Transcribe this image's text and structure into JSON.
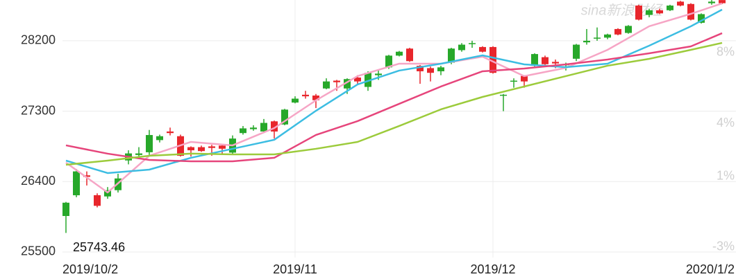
{
  "chart_data": {
    "type": "candlestick",
    "watermark": "sina新浪财经",
    "annotation": "25743.46",
    "categories": [
      "2019/10/2",
      null,
      null,
      null,
      null,
      null,
      null,
      null,
      null,
      null,
      null,
      null,
      null,
      null,
      null,
      null,
      null,
      null,
      null,
      null,
      null,
      null,
      "2019/11",
      null,
      null,
      null,
      null,
      null,
      null,
      null,
      null,
      null,
      null,
      null,
      null,
      null,
      null,
      null,
      null,
      null,
      null,
      "2019/12",
      null,
      null,
      null,
      null,
      null,
      null,
      null,
      null,
      null,
      null,
      null,
      null,
      null,
      null,
      null,
      null,
      null,
      null,
      null,
      null,
      null,
      "2020/1/2"
    ],
    "open": [
      26130,
      26530,
      26460,
      26090,
      26290,
      26440,
      26760,
      26760,
      26995,
      26980,
      27020,
      26730,
      26800,
      26790,
      26830,
      26820,
      26950,
      27080,
      27090,
      27150,
      27040,
      27320,
      27460,
      27490,
      27440,
      27680,
      27670,
      27710,
      27680,
      27790,
      27780,
      28010,
      28060,
      27940,
      27810,
      27790,
      27860,
      28100,
      28150,
      28170,
      28060,
      27790,
      27510,
      27690,
      27680,
      28030,
      27900,
      27910,
      27900,
      28150,
      28200,
      28240,
      28280,
      28280,
      28390,
      28470,
      28590,
      28550,
      28650,
      28650,
      28470,
      28540,
      28700,
      28680
    ],
    "high": [
      26140,
      26560,
      26530,
      26250,
      26330,
      26500,
      26800,
      26840,
      27060,
      27000,
      27090,
      27000,
      26850,
      26860,
      26870,
      26880,
      26990,
      27110,
      27120,
      27200,
      27180,
      27330,
      27490,
      27560,
      27520,
      27720,
      27700,
      27720,
      27760,
      27810,
      27820,
      28020,
      28070,
      28110,
      27890,
      27870,
      27880,
      28110,
      28170,
      28200,
      28130,
      28130,
      27520,
      27720,
      27760,
      28040,
      28010,
      27960,
      27920,
      28160,
      28350,
      28370,
      28290,
      28360,
      28400,
      28660,
      28610,
      28610,
      28660,
      28710,
      28680,
      28550,
      28720,
      28720
    ],
    "low": [
      25743.46,
      26200,
      26350,
      26070,
      26180,
      26260,
      26620,
      26700,
      26740,
      26900,
      26990,
      26720,
      26720,
      26780,
      26730,
      26740,
      26750,
      27000,
      27050,
      27020,
      26950,
      27120,
      27400,
      27460,
      27340,
      27580,
      27560,
      27520,
      27640,
      27560,
      27700,
      27840,
      28000,
      27930,
      27650,
      27680,
      27760,
      27900,
      28060,
      28110,
      28050,
      27780,
      27300,
      27600,
      27600,
      27870,
      27890,
      27850,
      27820,
      27940,
      28150,
      28200,
      28220,
      28270,
      28290,
      28460,
      28500,
      28540,
      28580,
      28640,
      28460,
      28420,
      28660,
      28670
    ],
    "close": [
      25960,
      26225,
      26480,
      26226,
      26210,
      26290,
      26670,
      26740,
      26775,
      26930,
      27040,
      26980,
      26840,
      26840,
      26850,
      26860,
      26770,
      27020,
      27070,
      27040,
      27170,
      27130,
      27410,
      27510,
      27500,
      27590,
      27690,
      27590,
      27730,
      27610,
      27760,
      27860,
      28010,
      28100,
      27880,
      27850,
      27810,
      27920,
      28080,
      28160,
      28120,
      28120,
      27500,
      27680,
      27750,
      27880,
      27990,
      27930,
      27890,
      27970,
      28180,
      28230,
      28240,
      28350,
      28300,
      28650,
      28530,
      28590,
      28590,
      28700,
      28670,
      28430,
      28680,
      28720
    ],
    "up_color": "#e8262c",
    "down_color": "#27a82a",
    "series": [
      {
        "color": "#f6a5c5",
        "x": [
          0,
          4,
          8,
          12,
          16,
          20,
          24,
          28,
          32,
          36,
          40,
          44,
          48,
          52,
          56,
          60,
          63
        ],
        "values": [
          26642,
          26261,
          26730,
          26907,
          26863,
          27084,
          27438,
          27748,
          27907,
          27907,
          27996,
          27748,
          27854,
          28084,
          28385,
          28544,
          28677
        ]
      },
      {
        "color": "#3cbde2",
        "x": [
          0,
          4,
          8,
          12,
          16,
          20,
          24,
          28,
          32,
          36,
          40,
          44,
          48,
          52,
          56,
          60,
          63
        ],
        "values": [
          26668,
          26509,
          26553,
          26704,
          26819,
          26934,
          27305,
          27642,
          27819,
          27907,
          28013,
          27898,
          27863,
          27907,
          28137,
          28385,
          28598
        ]
      },
      {
        "color": "#e6457b",
        "x": [
          0,
          4,
          8,
          12,
          16,
          20,
          24,
          28,
          32,
          36,
          40,
          44,
          48,
          52,
          56,
          60,
          63
        ],
        "values": [
          26863,
          26757,
          26677,
          26659,
          26659,
          26704,
          26996,
          27173,
          27394,
          27615,
          27810,
          27845,
          27898,
          27960,
          28040,
          28128,
          28297
        ]
      },
      {
        "color": "#9ccb3b",
        "x": [
          0,
          4,
          8,
          12,
          16,
          20,
          24,
          28,
          32,
          36,
          40,
          44,
          48,
          52,
          56,
          60,
          63
        ],
        "values": [
          26615,
          26668,
          26730,
          26757,
          26748,
          26748,
          26819,
          26907,
          27111,
          27323,
          27482,
          27615,
          27748,
          27881,
          27969,
          28084,
          28173
        ]
      }
    ],
    "ylim": [
      25429,
      28721
    ],
    "yticks": [
      25500,
      26400,
      27300,
      28200
    ],
    "y2lim": [
      -3.59,
      10.97
    ],
    "y2ticks": [
      {
        "value": 8,
        "label": "8%"
      },
      {
        "value": 4,
        "label": "4%"
      },
      {
        "value": 1,
        "label": "1%"
      },
      {
        "value": -3,
        "label": "-3%"
      }
    ],
    "grid": true
  }
}
